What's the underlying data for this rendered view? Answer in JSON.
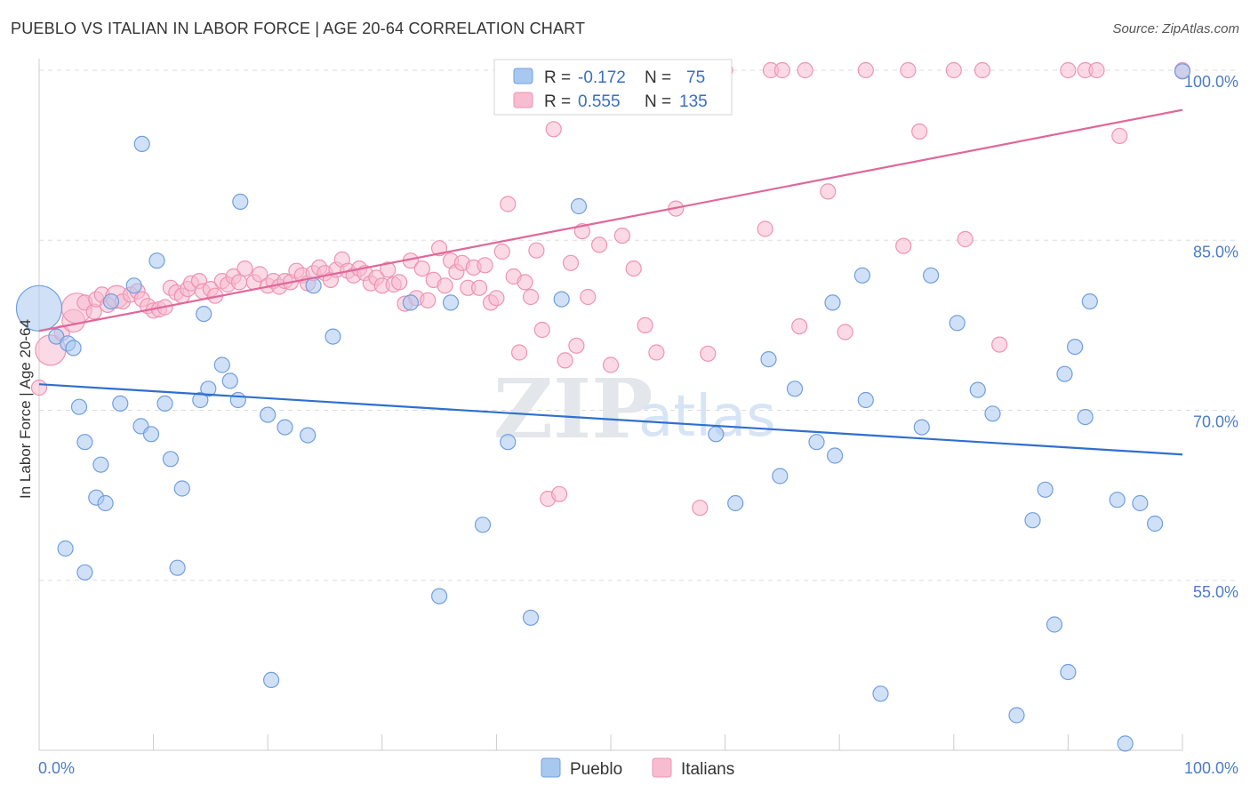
{
  "title": "PUEBLO VS ITALIAN IN LABOR FORCE | AGE 20-64 CORRELATION CHART",
  "source": "Source: ZipAtlas.com",
  "watermark": {
    "zip": "ZIP",
    "atlas": "atlas"
  },
  "legend": {
    "r_label": "R =",
    "n_label": "N =",
    "rows": [
      {
        "series": "Pueblo",
        "r": "-0.172",
        "n": "75"
      },
      {
        "series": "Italians",
        "r": "0.555",
        "n": "135"
      }
    ]
  },
  "bottom_legend": [
    "Pueblo",
    "Italians"
  ],
  "colors": {
    "pueblo_fill": "#a9c8f0",
    "pueblo_stroke": "#6f9fe0",
    "pueblo_line": "#2f6fcf",
    "italian_fill": "#f8bcd0",
    "italian_stroke": "#ee93b2",
    "italian_line": "#e0679a",
    "tick_text": "#4a7cc7",
    "grid": "#dddddd"
  },
  "chart_data": {
    "type": "scatter",
    "title": "PUEBLO VS ITALIAN IN LABOR FORCE | AGE 20-64 CORRELATION CHART",
    "xlabel": "",
    "ylabel": "In Labor Force | Age 20-64",
    "xlim": [
      0,
      100
    ],
    "ylim": [
      40,
      100
    ],
    "x_tick_labels": [
      "0.0%",
      "100.0%"
    ],
    "y_ticks": [
      55,
      70,
      85,
      100
    ],
    "y_tick_labels": [
      "55.0%",
      "70.0%",
      "85.0%",
      "100.0%"
    ],
    "grid": "horizontal dashed",
    "legend_position": "top-center",
    "series": [
      {
        "name": "Pueblo",
        "r": -0.172,
        "n": 75,
        "trend": {
          "x": [
            0,
            100
          ],
          "y": [
            72.3,
            66.1
          ]
        },
        "points": [
          [
            0,
            79,
            3
          ],
          [
            1.5,
            76.5,
            1
          ],
          [
            2.5,
            75.9,
            1
          ],
          [
            3,
            75.5,
            1
          ],
          [
            3.5,
            70.3,
            1
          ],
          [
            4,
            67.2,
            1
          ],
          [
            5.4,
            65.2,
            1
          ],
          [
            5,
            62.3,
            1
          ],
          [
            5.8,
            61.8,
            1
          ],
          [
            2.3,
            57.8,
            1
          ],
          [
            4,
            55.7,
            1
          ],
          [
            6.3,
            79.6,
            1
          ],
          [
            8.3,
            81,
            1
          ],
          [
            9,
            93.5,
            1
          ],
          [
            10.3,
            83.2,
            1
          ],
          [
            7.1,
            70.6,
            1
          ],
          [
            8.9,
            68.6,
            1
          ],
          [
            9.8,
            67.9,
            1
          ],
          [
            11,
            70.6,
            1
          ],
          [
            11.5,
            65.7,
            1
          ],
          [
            12.5,
            63.1,
            1
          ],
          [
            12.1,
            56.1,
            1
          ],
          [
            14.4,
            78.5,
            1
          ],
          [
            14.1,
            70.9,
            1
          ],
          [
            14.8,
            71.9,
            1
          ],
          [
            16,
            74,
            1
          ],
          [
            16.7,
            72.6,
            1
          ],
          [
            17.4,
            70.9,
            1
          ],
          [
            17.6,
            88.4,
            1
          ],
          [
            20,
            69.6,
            1
          ],
          [
            21.5,
            68.5,
            1
          ],
          [
            24,
            81,
            1
          ],
          [
            23.5,
            67.8,
            1
          ],
          [
            25.7,
            76.5,
            1
          ],
          [
            20.3,
            46.2,
            1
          ],
          [
            32.5,
            79.5,
            1
          ],
          [
            35,
            53.6,
            1
          ],
          [
            36,
            79.5,
            1
          ],
          [
            38.8,
            59.9,
            1
          ],
          [
            41,
            67.2,
            1
          ],
          [
            43,
            51.7,
            1
          ],
          [
            45.7,
            79.8,
            1
          ],
          [
            47.2,
            88,
            1
          ],
          [
            59.2,
            67.9,
            1
          ],
          [
            60.9,
            61.8,
            1
          ],
          [
            63.8,
            74.5,
            1
          ],
          [
            64.8,
            64.2,
            1
          ],
          [
            66.1,
            71.9,
            1
          ],
          [
            68,
            67.2,
            1
          ],
          [
            69.4,
            79.5,
            1
          ],
          [
            69.6,
            66,
            1
          ],
          [
            72,
            81.9,
            1
          ],
          [
            72.3,
            70.9,
            1
          ],
          [
            73.6,
            45,
            1
          ],
          [
            77.2,
            68.5,
            1
          ],
          [
            78,
            81.9,
            1
          ],
          [
            80.3,
            77.7,
            1
          ],
          [
            82.1,
            71.8,
            1
          ],
          [
            83.4,
            69.7,
            1
          ],
          [
            85.5,
            43.1,
            1
          ],
          [
            86.9,
            60.3,
            1
          ],
          [
            88,
            63,
            1
          ],
          [
            88.8,
            51.1,
            1
          ],
          [
            89.7,
            73.2,
            1
          ],
          [
            90.6,
            75.6,
            1
          ],
          [
            90,
            46.9,
            1
          ],
          [
            91.5,
            69.4,
            1
          ],
          [
            91.9,
            79.6,
            1
          ],
          [
            94.3,
            62.1,
            1
          ],
          [
            95,
            40.6,
            1
          ],
          [
            96.3,
            61.8,
            1
          ],
          [
            97.6,
            60,
            1
          ],
          [
            100,
            99.9,
            1
          ]
        ]
      },
      {
        "name": "Italians",
        "r": 0.555,
        "n": 135,
        "trend": {
          "x": [
            0,
            100
          ],
          "y": [
            77.0,
            96.5
          ]
        },
        "points": [
          [
            0,
            72,
            1
          ],
          [
            1,
            75.3,
            2
          ],
          [
            2,
            76.8,
            1
          ],
          [
            3,
            77.9,
            1.5
          ],
          [
            3.3,
            79,
            2
          ],
          [
            4,
            79.5,
            1
          ],
          [
            4.8,
            78.7,
            1
          ],
          [
            5,
            79.8,
            1
          ],
          [
            5.5,
            80.2,
            1
          ],
          [
            6,
            79.3,
            1
          ],
          [
            6.8,
            80,
            1.5
          ],
          [
            7.3,
            79.6,
            1
          ],
          [
            8,
            80.2,
            1
          ],
          [
            8.6,
            80.5,
            1
          ],
          [
            9,
            79.8,
            1
          ],
          [
            9.5,
            79.2,
            1
          ],
          [
            10,
            78.8,
            1
          ],
          [
            10.5,
            78.9,
            1
          ],
          [
            11,
            79.1,
            1
          ],
          [
            11.5,
            80.8,
            1
          ],
          [
            12,
            80.4,
            1
          ],
          [
            12.5,
            80.1,
            1
          ],
          [
            13,
            80.7,
            1
          ],
          [
            13.3,
            81.2,
            1
          ],
          [
            14,
            81.4,
            1
          ],
          [
            14.3,
            80.5,
            1
          ],
          [
            15,
            80.7,
            1
          ],
          [
            15.4,
            80.1,
            1
          ],
          [
            16,
            81.4,
            1
          ],
          [
            16.5,
            81.1,
            1
          ],
          [
            17,
            81.8,
            1
          ],
          [
            17.5,
            81.3,
            1
          ],
          [
            18,
            82.5,
            1
          ],
          [
            18.8,
            81.3,
            1
          ],
          [
            19.3,
            82,
            1
          ],
          [
            20,
            81,
            1
          ],
          [
            20.5,
            81.4,
            1
          ],
          [
            21,
            80.9,
            1
          ],
          [
            21.5,
            81.4,
            1
          ],
          [
            22,
            81.3,
            1
          ],
          [
            22.5,
            82.3,
            1
          ],
          [
            23,
            81.9,
            1
          ],
          [
            23.5,
            81.2,
            1
          ],
          [
            24,
            82.1,
            1
          ],
          [
            24.5,
            82.6,
            1
          ],
          [
            25,
            82.1,
            1
          ],
          [
            25.5,
            81.5,
            1
          ],
          [
            26,
            82.4,
            1
          ],
          [
            26.5,
            83.3,
            1
          ],
          [
            27,
            82.3,
            1
          ],
          [
            27.5,
            81.9,
            1
          ],
          [
            28,
            82.5,
            1
          ],
          [
            28.5,
            82.1,
            1
          ],
          [
            29,
            81.2,
            1
          ],
          [
            29.5,
            81.7,
            1
          ],
          [
            30,
            81,
            1
          ],
          [
            30.5,
            82.4,
            1
          ],
          [
            31,
            81.1,
            1
          ],
          [
            31.5,
            81.3,
            1
          ],
          [
            32,
            79.4,
            1
          ],
          [
            32.5,
            83.2,
            1
          ],
          [
            33,
            79.9,
            1
          ],
          [
            33.5,
            82.5,
            1
          ],
          [
            34,
            79.7,
            1
          ],
          [
            34.5,
            81.5,
            1
          ],
          [
            35,
            84.3,
            1
          ],
          [
            35.5,
            81,
            1
          ],
          [
            36,
            83.2,
            1
          ],
          [
            36.5,
            82.2,
            1
          ],
          [
            37,
            83,
            1
          ],
          [
            37.5,
            80.8,
            1
          ],
          [
            38,
            82.6,
            1
          ],
          [
            38.5,
            80.8,
            1
          ],
          [
            39,
            82.8,
            1
          ],
          [
            39.5,
            79.5,
            1
          ],
          [
            40,
            79.9,
            1
          ],
          [
            40.5,
            84,
            1
          ],
          [
            41,
            88.2,
            1
          ],
          [
            41.5,
            81.8,
            1
          ],
          [
            42,
            75.1,
            1
          ],
          [
            42.5,
            81.3,
            1
          ],
          [
            43,
            80,
            1
          ],
          [
            43.5,
            84.1,
            1
          ],
          [
            44,
            77.1,
            1
          ],
          [
            44.5,
            62.2,
            1
          ],
          [
            45,
            94.8,
            1
          ],
          [
            45.5,
            62.6,
            1
          ],
          [
            46,
            74.4,
            1
          ],
          [
            46.5,
            83,
            1
          ],
          [
            47,
            75.7,
            1
          ],
          [
            47.5,
            85.8,
            1
          ],
          [
            48,
            80,
            1
          ],
          [
            49,
            84.6,
            1
          ],
          [
            50,
            74,
            1
          ],
          [
            51,
            85.4,
            1
          ],
          [
            52,
            82.5,
            1
          ],
          [
            53,
            77.5,
            1
          ],
          [
            54,
            75.1,
            1
          ],
          [
            55.7,
            87.8,
            1
          ],
          [
            56,
            100,
            1
          ],
          [
            57,
            100,
            1
          ],
          [
            57.8,
            61.4,
            1
          ],
          [
            58.5,
            75,
            1
          ],
          [
            60,
            100,
            1
          ],
          [
            63.5,
            86,
            1
          ],
          [
            64,
            100,
            1
          ],
          [
            65,
            100,
            1
          ],
          [
            66.5,
            77.4,
            1
          ],
          [
            67,
            100,
            1
          ],
          [
            69,
            89.3,
            1
          ],
          [
            70.5,
            76.9,
            1
          ],
          [
            72.3,
            100,
            1
          ],
          [
            75.6,
            84.5,
            1
          ],
          [
            76,
            100,
            1
          ],
          [
            77,
            94.6,
            1
          ],
          [
            80,
            100,
            1
          ],
          [
            81,
            85.1,
            1
          ],
          [
            82.5,
            100,
            1
          ],
          [
            84,
            75.8,
            1
          ],
          [
            90,
            100,
            1
          ],
          [
            91.5,
            100,
            1
          ],
          [
            92.5,
            100,
            1
          ],
          [
            94.5,
            94.2,
            1
          ],
          [
            100,
            100,
            1
          ]
        ]
      }
    ]
  }
}
